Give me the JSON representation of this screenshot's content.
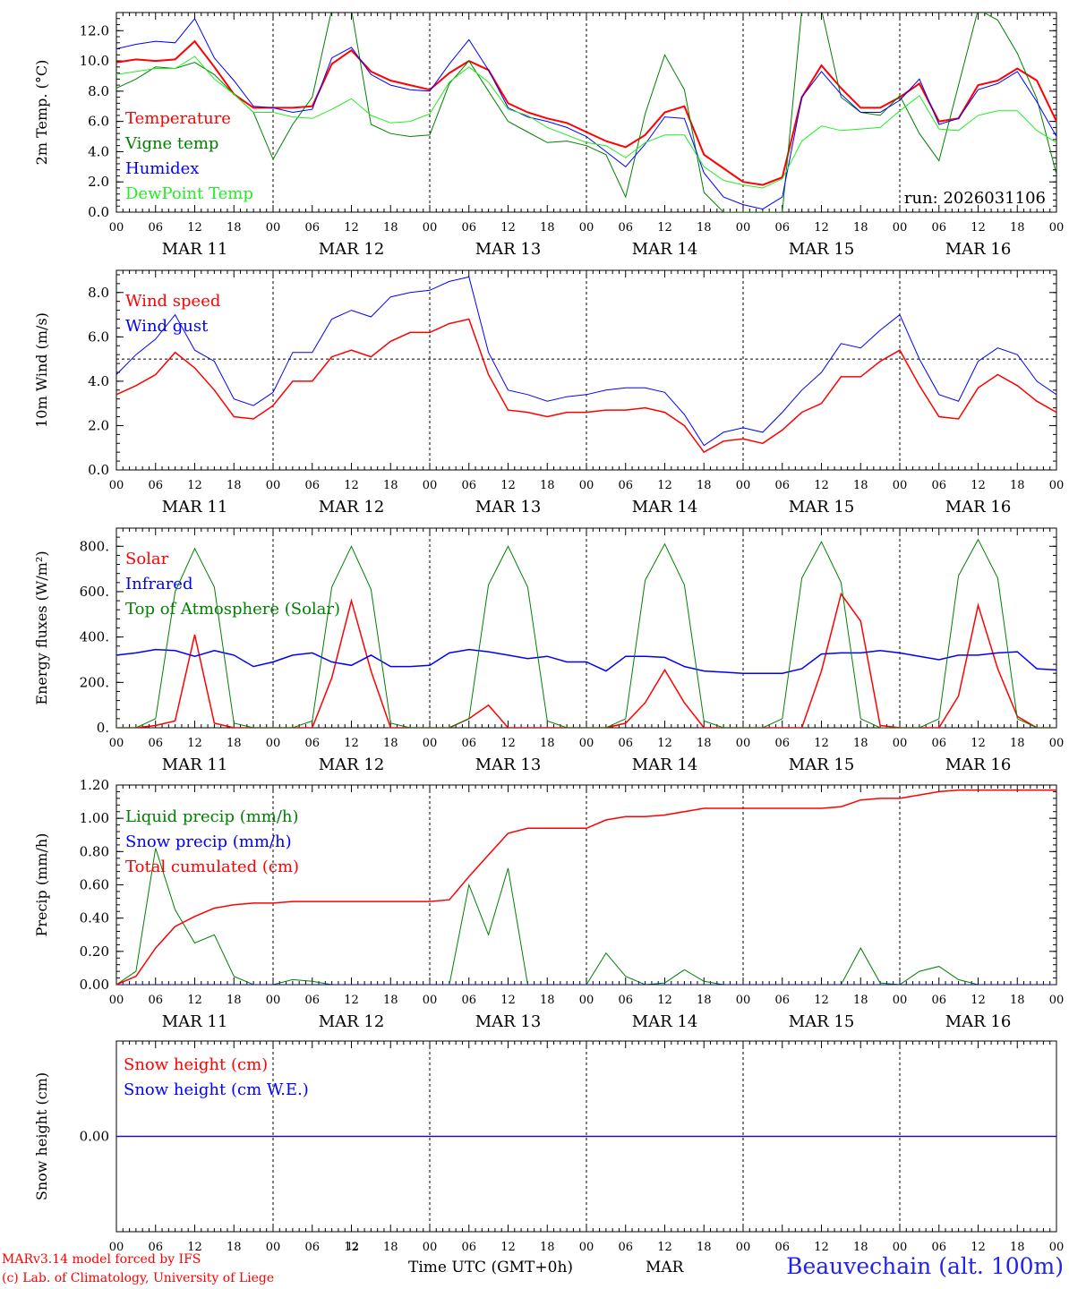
{
  "run_label": "run: 2026031106",
  "x_hour_ticks": [
    "00",
    "06",
    "12",
    "18"
  ],
  "days": [
    "MAR 11",
    "MAR 12",
    "MAR 13",
    "MAR 14",
    "MAR 15",
    "MAR 16"
  ],
  "colors": {
    "red": "#ff0000",
    "green": "#008000",
    "blue": "#0000ff",
    "lightgreen": "#22ee22",
    "station": "#2222ee"
  },
  "chart_data": [
    {
      "type": "line",
      "title": "2m Temp.",
      "ylabel": "2m Temp. (°C)",
      "ylim": [
        0,
        13.2
      ],
      "yticks": [
        "0.0",
        "2.0",
        "4.0",
        "6.0",
        "8.0",
        "10.0",
        "12.0"
      ],
      "ytick_values": [
        0,
        2,
        4,
        6,
        8,
        10,
        12
      ],
      "x_hours": [
        0,
        3,
        6,
        9,
        12,
        15,
        18,
        21,
        24,
        27,
        30,
        33,
        36,
        39,
        42,
        45,
        48,
        51,
        54,
        57,
        60,
        63,
        66,
        69,
        72,
        75,
        78,
        81,
        84,
        87,
        90,
        93,
        96,
        99,
        102,
        105,
        108,
        111,
        114,
        117,
        120,
        123,
        126,
        129,
        132,
        135,
        138,
        141,
        144
      ],
      "series": [
        {
          "name": "Temperature",
          "color": "red",
          "width": 2,
          "values": [
            9.9,
            10.1,
            10.0,
            10.1,
            11.3,
            9.6,
            7.8,
            6.9,
            6.9,
            6.9,
            7.0,
            9.8,
            10.7,
            9.3,
            8.7,
            8.4,
            8.1,
            9.2,
            10.0,
            9.4,
            7.2,
            6.6,
            6.2,
            5.9,
            5.3,
            4.7,
            4.3,
            5.1,
            6.6,
            7.0,
            3.8,
            2.9,
            2.0,
            1.8,
            2.3,
            7.6,
            9.7,
            8.2,
            6.9,
            6.9,
            7.6,
            8.5,
            6.0,
            6.2,
            8.4,
            8.7,
            9.5,
            8.7,
            6.0
          ]
        },
        {
          "name": "Vigne temp",
          "color": "green",
          "width": 1,
          "values": [
            8.2,
            8.8,
            9.6,
            9.5,
            9.9,
            9.1,
            7.8,
            6.6,
            3.5,
            5.8,
            7.6,
            13.4,
            13.4,
            5.8,
            5.2,
            5.0,
            5.1,
            8.5,
            10.0,
            8.0,
            6.0,
            5.3,
            4.6,
            4.7,
            4.4,
            3.8,
            1.0,
            6.5,
            10.4,
            8.1,
            1.3,
            0.0,
            0.0,
            0.0,
            0.0,
            13.4,
            13.4,
            7.6,
            6.6,
            6.4,
            7.7,
            5.2,
            3.4,
            8.4,
            13.4,
            12.7,
            10.5,
            7.5,
            2.5
          ]
        },
        {
          "name": "Humidex",
          "color": "blue",
          "width": 1,
          "values": [
            10.8,
            11.1,
            11.3,
            11.2,
            12.8,
            10.2,
            8.7,
            7.0,
            6.9,
            6.6,
            6.8,
            10.2,
            10.9,
            9.1,
            8.4,
            8.1,
            8.0,
            9.8,
            11.4,
            9.4,
            6.9,
            6.3,
            6.0,
            5.6,
            5.0,
            4.0,
            3.0,
            4.5,
            6.3,
            6.2,
            2.6,
            1.0,
            0.5,
            0.2,
            1.0,
            7.6,
            9.3,
            7.8,
            6.6,
            6.6,
            7.4,
            8.8,
            5.8,
            6.2,
            8.1,
            8.5,
            9.3,
            7.3,
            5.0
          ]
        },
        {
          "name": "DewPoint Temp",
          "color": "lightgreen",
          "width": 1,
          "values": [
            9.1,
            9.3,
            9.5,
            9.5,
            10.3,
            8.8,
            7.8,
            6.6,
            6.6,
            6.3,
            6.2,
            6.8,
            7.5,
            6.4,
            5.9,
            6.0,
            6.5,
            8.6,
            9.6,
            8.6,
            6.8,
            6.4,
            5.6,
            5.1,
            4.6,
            4.4,
            3.6,
            4.6,
            5.1,
            5.1,
            3.0,
            2.1,
            1.8,
            1.6,
            2.2,
            4.7,
            5.7,
            5.4,
            5.5,
            5.6,
            6.7,
            7.7,
            5.5,
            5.4,
            6.4,
            6.7,
            6.7,
            5.4,
            4.6
          ]
        }
      ],
      "annotation": "run: 2026031106"
    },
    {
      "type": "line",
      "title": "10m Wind",
      "ylabel": "10m Wind (m/s)",
      "ylim": [
        0,
        9.0
      ],
      "yticks": [
        "0.0",
        "2.0",
        "4.0",
        "6.0",
        "8.0"
      ],
      "ytick_values": [
        0,
        2,
        4,
        6,
        8
      ],
      "reference_line": 5.0,
      "x_hours": [
        0,
        3,
        6,
        9,
        12,
        15,
        18,
        21,
        24,
        27,
        30,
        33,
        36,
        39,
        42,
        45,
        48,
        51,
        54,
        57,
        60,
        63,
        66,
        69,
        72,
        75,
        78,
        81,
        84,
        87,
        90,
        93,
        96,
        99,
        102,
        105,
        108,
        111,
        114,
        117,
        120,
        123,
        126,
        129,
        132,
        135,
        138,
        141,
        144
      ],
      "series": [
        {
          "name": "Wind speed",
          "color": "red",
          "width": 1.5,
          "values": [
            3.4,
            3.8,
            4.3,
            5.3,
            4.6,
            3.6,
            2.4,
            2.3,
            2.9,
            4.0,
            4.0,
            5.1,
            5.4,
            5.1,
            5.8,
            6.2,
            6.2,
            6.6,
            6.8,
            4.3,
            2.7,
            2.6,
            2.4,
            2.6,
            2.6,
            2.7,
            2.7,
            2.8,
            2.6,
            2.0,
            0.8,
            1.3,
            1.4,
            1.2,
            1.8,
            2.6,
            3.0,
            4.2,
            4.2,
            4.9,
            5.4,
            3.8,
            2.4,
            2.3,
            3.7,
            4.3,
            3.8,
            3.1,
            2.6
          ]
        },
        {
          "name": "Wind gust",
          "color": "blue",
          "width": 1,
          "values": [
            4.3,
            5.2,
            5.9,
            7.0,
            5.4,
            4.9,
            3.2,
            2.9,
            3.5,
            5.3,
            5.3,
            6.8,
            7.2,
            6.9,
            7.8,
            8.0,
            8.1,
            8.5,
            8.7,
            5.3,
            3.6,
            3.4,
            3.1,
            3.3,
            3.4,
            3.6,
            3.7,
            3.7,
            3.5,
            2.5,
            1.1,
            1.7,
            1.9,
            1.7,
            2.6,
            3.6,
            4.4,
            5.7,
            5.5,
            6.3,
            7.0,
            5.0,
            3.4,
            3.1,
            4.9,
            5.5,
            5.2,
            4.0,
            3.4
          ]
        }
      ]
    },
    {
      "type": "line",
      "title": "Energy fluxes",
      "ylabel": "Energy fluxes (W/m²)",
      "ylim": [
        0,
        880
      ],
      "yticks": [
        "0.",
        "200.",
        "400.",
        "600.",
        "800."
      ],
      "ytick_values": [
        0,
        200,
        400,
        600,
        800
      ],
      "x_hours": [
        0,
        3,
        6,
        9,
        12,
        15,
        18,
        21,
        24,
        27,
        30,
        33,
        36,
        39,
        42,
        45,
        48,
        51,
        54,
        57,
        60,
        63,
        66,
        69,
        72,
        75,
        78,
        81,
        84,
        87,
        90,
        93,
        96,
        99,
        102,
        105,
        108,
        111,
        114,
        117,
        120,
        123,
        126,
        129,
        132,
        135,
        138,
        141,
        144
      ],
      "series": [
        {
          "name": "Solar",
          "color": "red",
          "width": 1.5,
          "values": [
            0,
            0,
            10,
            30,
            410,
            20,
            0,
            0,
            0,
            0,
            0,
            220,
            560,
            250,
            0,
            0,
            0,
            0,
            40,
            100,
            0,
            0,
            0,
            0,
            0,
            0,
            20,
            110,
            255,
            110,
            0,
            0,
            0,
            0,
            0,
            0,
            250,
            590,
            470,
            10,
            0,
            0,
            0,
            140,
            540,
            260,
            50,
            0,
            0
          ]
        },
        {
          "name": "Infrared",
          "color": "blue",
          "width": 1.5,
          "values": [
            320,
            330,
            345,
            340,
            315,
            340,
            320,
            270,
            290,
            320,
            330,
            290,
            275,
            320,
            270,
            270,
            275,
            330,
            345,
            335,
            320,
            305,
            315,
            290,
            290,
            250,
            315,
            315,
            310,
            270,
            250,
            245,
            240,
            240,
            240,
            260,
            325,
            330,
            330,
            340,
            330,
            315,
            300,
            320,
            320,
            330,
            335,
            260,
            255
          ]
        },
        {
          "name": "Top of Atmosphere (Solar)",
          "color": "green",
          "width": 1,
          "values": [
            0,
            0,
            40,
            600,
            790,
            620,
            20,
            0,
            0,
            0,
            30,
            620,
            800,
            610,
            20,
            0,
            0,
            0,
            40,
            630,
            800,
            620,
            30,
            0,
            0,
            0,
            40,
            650,
            810,
            630,
            30,
            0,
            0,
            0,
            40,
            660,
            820,
            640,
            40,
            0,
            0,
            0,
            40,
            670,
            830,
            660,
            40,
            0,
            0
          ]
        }
      ]
    },
    {
      "type": "line",
      "title": "Precip",
      "ylabel": "Precip (mm/h)",
      "ylim": [
        0,
        1.2
      ],
      "yticks": [
        "0.00",
        "0.20",
        "0.40",
        "0.60",
        "0.80",
        "1.00",
        "1.20"
      ],
      "ytick_values": [
        0,
        0.2,
        0.4,
        0.6,
        0.8,
        1.0,
        1.2
      ],
      "x_hours": [
        0,
        3,
        6,
        9,
        12,
        15,
        18,
        21,
        24,
        27,
        30,
        33,
        36,
        39,
        42,
        45,
        48,
        51,
        54,
        57,
        60,
        63,
        66,
        69,
        72,
        75,
        78,
        81,
        84,
        87,
        90,
        93,
        96,
        99,
        102,
        105,
        108,
        111,
        114,
        117,
        120,
        123,
        126,
        129,
        132,
        135,
        138,
        141,
        144
      ],
      "series": [
        {
          "name": "Liquid precip (mm/h)",
          "color": "green",
          "width": 1,
          "values": [
            0.0,
            0.08,
            0.82,
            0.45,
            0.25,
            0.3,
            0.05,
            0.0,
            0.0,
            0.03,
            0.02,
            0.0,
            0.0,
            0.0,
            0.0,
            0.0,
            0.0,
            0.0,
            0.6,
            0.3,
            0.7,
            0.0,
            0.0,
            0.0,
            0.0,
            0.19,
            0.05,
            0.0,
            0.01,
            0.09,
            0.02,
            0.0,
            0.0,
            0.0,
            0.0,
            0.0,
            0.0,
            0.0,
            0.22,
            0.01,
            0.0,
            0.08,
            0.11,
            0.03,
            0.0,
            0.0,
            0.0,
            0.0,
            0.0
          ]
        },
        {
          "name": "Snow precip (mm/h)",
          "color": "blue",
          "width": 1,
          "values": [
            0,
            0,
            0,
            0,
            0,
            0,
            0,
            0,
            0,
            0,
            0,
            0,
            0,
            0,
            0,
            0,
            0,
            0,
            0,
            0,
            0,
            0,
            0,
            0,
            0,
            0,
            0,
            0,
            0,
            0,
            0,
            0,
            0,
            0,
            0,
            0,
            0,
            0,
            0,
            0,
            0,
            0,
            0,
            0,
            0,
            0,
            0,
            0,
            0
          ]
        },
        {
          "name": "Total cumulated (cm)",
          "color": "red",
          "width": 1.5,
          "values": [
            0.0,
            0.05,
            0.22,
            0.35,
            0.41,
            0.46,
            0.48,
            0.49,
            0.49,
            0.5,
            0.5,
            0.5,
            0.5,
            0.5,
            0.5,
            0.5,
            0.5,
            0.51,
            0.65,
            0.78,
            0.91,
            0.94,
            0.94,
            0.94,
            0.94,
            0.99,
            1.01,
            1.01,
            1.02,
            1.04,
            1.06,
            1.06,
            1.06,
            1.06,
            1.06,
            1.06,
            1.06,
            1.07,
            1.11,
            1.12,
            1.12,
            1.14,
            1.16,
            1.17,
            1.17,
            1.17,
            1.17,
            1.17,
            1.17
          ]
        }
      ]
    },
    {
      "type": "line",
      "title": "Snow height",
      "ylabel": "Snow height (cm)",
      "ylim": [
        -1,
        1
      ],
      "yticks": [
        "0.00"
      ],
      "ytick_values": [
        0
      ],
      "x_hours": [
        0,
        144
      ],
      "series": [
        {
          "name": "Snow height (cm)",
          "color": "red",
          "width": 1.2,
          "values": [
            0,
            0
          ]
        },
        {
          "name": "Snow height (cm W.E.)",
          "color": "blue",
          "width": 1.2,
          "values": [
            0,
            0
          ]
        }
      ]
    }
  ],
  "footer": {
    "model_line": "MARv3.14 model forced by IFS",
    "credit_line": "(c) Lab. of Climatology, University of Liege",
    "time_axis": "Time UTC (GMT+0h)",
    "month": "MAR",
    "small_hour": "12",
    "station": "Beauvechain (alt. 100m)"
  }
}
